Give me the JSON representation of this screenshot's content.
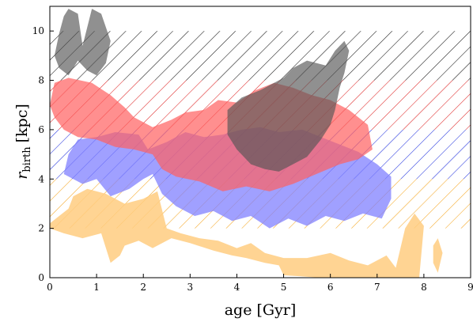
{
  "chart_data": {
    "type": "area",
    "title": "",
    "xlabel": "age [Gyr]",
    "ylabel_main": "r",
    "ylabel_sub": "birth",
    "ylabel_unit": "[kpc]",
    "xlim": [
      0,
      9
    ],
    "ylim": [
      0,
      11
    ],
    "x_ticks": [
      0,
      1,
      2,
      3,
      4,
      5,
      6,
      7,
      8,
      9
    ],
    "y_ticks": [
      0,
      2,
      4,
      6,
      8,
      10
    ],
    "grid": false,
    "legend": "none",
    "hatch_bands": [
      {
        "color": "#f5a623",
        "y0": 2,
        "y1": 4,
        "x0": 0,
        "x1": 9
      },
      {
        "color": "#2233dd",
        "y0": 4,
        "y1": 6,
        "x0": 0,
        "x1": 9
      },
      {
        "color": "#dd2222",
        "y0": 6,
        "y1": 8,
        "x0": 0,
        "x1": 9
      },
      {
        "color": "#111111",
        "y0": 8,
        "y1": 10,
        "x0": 0,
        "x1": 9
      }
    ],
    "series": [
      {
        "color": "#ffcc80",
        "opacity": 0.85,
        "points": [
          [
            0.0,
            2.2
          ],
          [
            0.2,
            2.5
          ],
          [
            0.4,
            2.8
          ],
          [
            0.5,
            3.3
          ],
          [
            0.8,
            3.6
          ],
          [
            1.2,
            3.4
          ],
          [
            1.6,
            3.0
          ],
          [
            2.0,
            3.2
          ],
          [
            2.3,
            3.5
          ],
          [
            2.5,
            2.0
          ],
          [
            2.8,
            1.8
          ],
          [
            3.2,
            1.6
          ],
          [
            3.6,
            1.5
          ],
          [
            4.0,
            1.2
          ],
          [
            4.3,
            1.4
          ],
          [
            4.6,
            1.0
          ],
          [
            5.0,
            0.8
          ],
          [
            5.5,
            0.8
          ],
          [
            6.0,
            1.0
          ],
          [
            6.4,
            0.7
          ],
          [
            6.8,
            0.5
          ],
          [
            7.2,
            0.9
          ],
          [
            7.4,
            0.4
          ],
          [
            7.5,
            1.2
          ],
          [
            7.6,
            2.0
          ],
          [
            7.8,
            2.6
          ],
          [
            8.0,
            2.1
          ],
          [
            7.9,
            0.0
          ],
          [
            7.4,
            0.0
          ],
          [
            6.5,
            0.0
          ],
          [
            5.8,
            0.0
          ],
          [
            5.0,
            0.1
          ],
          [
            4.9,
            0.5
          ],
          [
            4.6,
            0.6
          ],
          [
            4.2,
            0.8
          ],
          [
            3.9,
            0.9
          ],
          [
            3.5,
            1.1
          ],
          [
            3.0,
            1.4
          ],
          [
            2.6,
            1.6
          ],
          [
            2.2,
            1.2
          ],
          [
            1.9,
            1.5
          ],
          [
            1.6,
            1.3
          ],
          [
            1.5,
            0.9
          ],
          [
            1.3,
            0.6
          ],
          [
            1.1,
            1.8
          ],
          [
            0.7,
            1.6
          ],
          [
            0.3,
            1.8
          ],
          [
            0.0,
            2.0
          ]
        ]
      },
      {
        "color": "#ffcc80",
        "opacity": 0.85,
        "points": [
          [
            8.2,
            1.3
          ],
          [
            8.3,
            1.6
          ],
          [
            8.4,
            1.0
          ],
          [
            8.3,
            0.2
          ],
          [
            8.2,
            0.6
          ]
        ]
      },
      {
        "color": "#8080ff",
        "opacity": 0.75,
        "points": [
          [
            0.3,
            4.2
          ],
          [
            0.4,
            5.0
          ],
          [
            0.6,
            5.6
          ],
          [
            1.0,
            5.7
          ],
          [
            1.4,
            5.9
          ],
          [
            1.9,
            5.8
          ],
          [
            2.1,
            5.2
          ],
          [
            2.5,
            5.5
          ],
          [
            2.9,
            5.9
          ],
          [
            3.3,
            5.7
          ],
          [
            3.7,
            5.8
          ],
          [
            4.1,
            6.0
          ],
          [
            4.5,
            6.1
          ],
          [
            4.9,
            5.9
          ],
          [
            5.4,
            6.0
          ],
          [
            5.8,
            5.7
          ],
          [
            6.2,
            5.4
          ],
          [
            6.6,
            5.1
          ],
          [
            7.0,
            4.6
          ],
          [
            7.3,
            4.1
          ],
          [
            7.3,
            3.2
          ],
          [
            7.1,
            2.4
          ],
          [
            6.7,
            2.6
          ],
          [
            6.3,
            2.3
          ],
          [
            5.9,
            2.5
          ],
          [
            5.5,
            2.1
          ],
          [
            5.1,
            2.4
          ],
          [
            4.7,
            2.0
          ],
          [
            4.3,
            2.5
          ],
          [
            3.9,
            2.3
          ],
          [
            3.5,
            2.7
          ],
          [
            3.1,
            2.5
          ],
          [
            2.7,
            2.9
          ],
          [
            2.4,
            3.4
          ],
          [
            2.2,
            4.2
          ],
          [
            2.0,
            4.0
          ],
          [
            1.7,
            3.6
          ],
          [
            1.3,
            3.3
          ],
          [
            1.0,
            4.0
          ],
          [
            0.7,
            3.8
          ]
        ]
      },
      {
        "color": "#ff6060",
        "opacity": 0.7,
        "points": [
          [
            0.0,
            7.0
          ],
          [
            0.1,
            7.9
          ],
          [
            0.4,
            8.1
          ],
          [
            0.9,
            7.9
          ],
          [
            1.3,
            7.4
          ],
          [
            1.6,
            6.9
          ],
          [
            1.8,
            6.5
          ],
          [
            2.2,
            6.1
          ],
          [
            2.6,
            6.4
          ],
          [
            2.9,
            6.7
          ],
          [
            3.3,
            6.8
          ],
          [
            3.6,
            7.2
          ],
          [
            4.0,
            7.1
          ],
          [
            4.4,
            7.6
          ],
          [
            4.8,
            7.9
          ],
          [
            5.2,
            7.7
          ],
          [
            5.6,
            7.4
          ],
          [
            6.0,
            7.2
          ],
          [
            6.4,
            6.8
          ],
          [
            6.8,
            6.2
          ],
          [
            6.9,
            5.2
          ],
          [
            6.6,
            4.8
          ],
          [
            6.2,
            4.6
          ],
          [
            5.7,
            4.2
          ],
          [
            5.2,
            3.8
          ],
          [
            4.7,
            3.5
          ],
          [
            4.2,
            3.7
          ],
          [
            3.7,
            3.5
          ],
          [
            3.2,
            3.9
          ],
          [
            2.7,
            4.1
          ],
          [
            2.4,
            4.4
          ],
          [
            2.2,
            5.0
          ],
          [
            1.8,
            5.2
          ],
          [
            1.4,
            5.3
          ],
          [
            1.0,
            5.6
          ],
          [
            0.6,
            5.7
          ],
          [
            0.3,
            6.0
          ],
          [
            0.1,
            6.5
          ]
        ]
      },
      {
        "color": "#555555",
        "opacity": 0.65,
        "points": [
          [
            0.2,
            9.9
          ],
          [
            0.3,
            10.6
          ],
          [
            0.4,
            10.9
          ],
          [
            0.6,
            10.7
          ],
          [
            0.7,
            9.4
          ],
          [
            0.9,
            10.9
          ],
          [
            1.1,
            10.7
          ],
          [
            1.3,
            9.6
          ],
          [
            1.2,
            8.7
          ],
          [
            1.0,
            8.2
          ],
          [
            0.8,
            8.4
          ],
          [
            0.6,
            8.8
          ],
          [
            0.4,
            8.2
          ],
          [
            0.2,
            8.5
          ],
          [
            0.1,
            9.0
          ]
        ]
      },
      {
        "color": "#555555",
        "opacity": 0.65,
        "points": [
          [
            3.8,
            6.8
          ],
          [
            4.1,
            7.3
          ],
          [
            4.5,
            7.6
          ],
          [
            5.0,
            8.1
          ],
          [
            5.2,
            8.5
          ],
          [
            5.5,
            8.8
          ],
          [
            5.9,
            8.6
          ],
          [
            6.1,
            9.2
          ],
          [
            6.3,
            9.6
          ],
          [
            6.4,
            9.2
          ],
          [
            6.3,
            8.3
          ],
          [
            6.2,
            7.7
          ],
          [
            6.1,
            6.8
          ],
          [
            6.0,
            6.2
          ],
          [
            5.8,
            5.6
          ],
          [
            5.5,
            4.9
          ],
          [
            5.2,
            4.6
          ],
          [
            4.9,
            4.3
          ],
          [
            4.6,
            4.4
          ],
          [
            4.3,
            4.6
          ],
          [
            4.0,
            5.2
          ],
          [
            3.8,
            5.8
          ]
        ]
      }
    ]
  }
}
